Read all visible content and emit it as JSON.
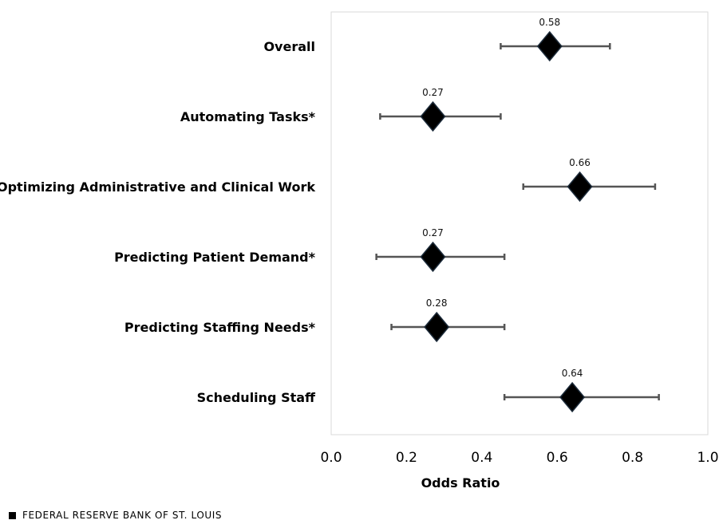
{
  "chart_data": {
    "type": "scatter",
    "categories": [
      "Overall",
      "Automating Tasks*",
      "Optimizing Administrative and Clinical Work",
      "Predicting Patient Demand*",
      "Predicting Staffing Needs*",
      "Scheduling Staff"
    ],
    "values": [
      0.58,
      0.27,
      0.66,
      0.27,
      0.28,
      0.64
    ],
    "value_labels": [
      "0.58",
      "0.27",
      "0.66",
      "0.27",
      "0.28",
      "0.64"
    ],
    "ci_low": [
      0.45,
      0.13,
      0.51,
      0.12,
      0.16,
      0.46
    ],
    "ci_high": [
      0.74,
      0.45,
      0.86,
      0.46,
      0.46,
      0.87
    ],
    "xlabel": "Odds Ratio",
    "ylabel": "",
    "xlim": [
      0.0,
      1.0
    ],
    "xticks": [
      "0.0",
      "0.2",
      "0.4",
      "0.6",
      "0.8",
      "1.0"
    ],
    "marker": "diamond",
    "colors": {
      "marker": "#000000",
      "marker_edge": "#1c2b3a",
      "error_bar": "#555555",
      "plot_border": "#d9d9d9"
    }
  },
  "source": {
    "text": "FEDERAL RESERVE BANK OF ST. LOUIS"
  }
}
